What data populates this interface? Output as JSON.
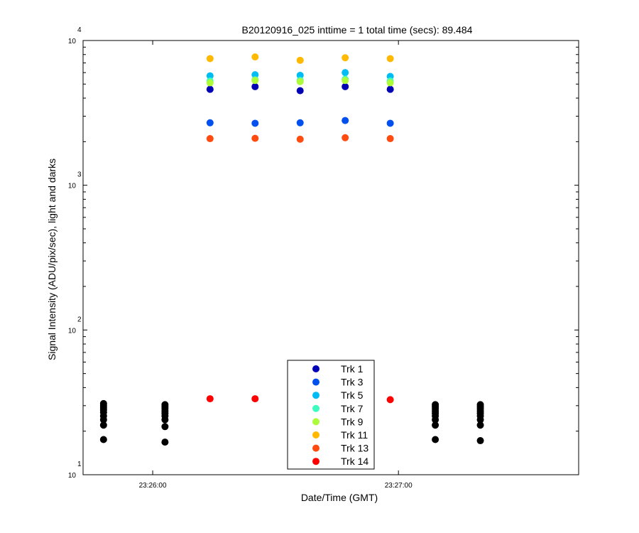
{
  "chart_data": {
    "type": "scatter",
    "title": "B20120916_025 inttime = 1 total time (secs): 89.484",
    "xlabel": "Date/Time (GMT)",
    "ylabel": "Signal Intensity (ADU/pix/sec), light and darks",
    "yscale": "log",
    "ylim": [
      10,
      10000
    ],
    "xlim": [
      "23:25:43",
      "23:27:44"
    ],
    "x_ticks": [
      {
        "value": "23:26:00",
        "label": "23:26:00"
      },
      {
        "value": "23:27:00",
        "label": "23:27:00"
      }
    ],
    "y_ticks": [
      {
        "value": 10,
        "base": "10",
        "exp": "1"
      },
      {
        "value": 100,
        "base": "10",
        "exp": "2"
      },
      {
        "value": 1000,
        "base": "10",
        "exp": "3"
      },
      {
        "value": 10000,
        "base": "10",
        "exp": "4"
      }
    ],
    "legend_position": "bottom-center",
    "light_times": [
      "23:26:14",
      "23:26:25",
      "23:26:36",
      "23:26:47",
      "23:26:58"
    ],
    "series": [
      {
        "name": "Trk 1",
        "color": "#0000B4",
        "values": [
          4600,
          4800,
          4500,
          4800,
          4600
        ]
      },
      {
        "name": "Trk 3",
        "color": "#0050F0",
        "values": [
          2700,
          2680,
          2700,
          2800,
          2680
        ]
      },
      {
        "name": "Trk 5",
        "color": "#00BCF5",
        "values": [
          5700,
          5800,
          5750,
          6000,
          5650
        ]
      },
      {
        "name": "Trk 7",
        "color": "#3CFCC0",
        "values": [
          5250,
          5350,
          5300,
          5400,
          5250
        ]
      },
      {
        "name": "Trk 9",
        "color": "#ADFC3C",
        "values": [
          5100,
          5300,
          5200,
          5300,
          5100
        ]
      },
      {
        "name": "Trk 11",
        "color": "#FFB900",
        "values": [
          7500,
          7700,
          7300,
          7600,
          7500
        ]
      },
      {
        "name": "Trk 13",
        "color": "#FF4B0F",
        "values": [
          2100,
          2110,
          2080,
          2130,
          2100
        ]
      },
      {
        "name": "Trk 14",
        "color": "#FF0000",
        "values": [
          33.5,
          33.5,
          null,
          null,
          33
        ]
      }
    ],
    "dark_color": "#000000",
    "dark_series": [
      {
        "x": "23:25:48",
        "values": [
          17.5,
          22,
          24,
          25.5,
          27,
          28,
          29,
          30,
          31
        ]
      },
      {
        "x": "23:26:03",
        "values": [
          16.8,
          21.5,
          24,
          25.5,
          26.5,
          27.5,
          28.5,
          29.5,
          30.5
        ]
      },
      {
        "x": "23:27:09",
        "values": [
          17.5,
          22,
          24,
          25.5,
          26.5,
          27.5,
          28.5,
          29.5,
          30.5
        ]
      },
      {
        "x": "23:27:20",
        "values": [
          17.2,
          22,
          24,
          25.5,
          26.5,
          27.5,
          28.5,
          29.5,
          30.5
        ]
      }
    ]
  }
}
